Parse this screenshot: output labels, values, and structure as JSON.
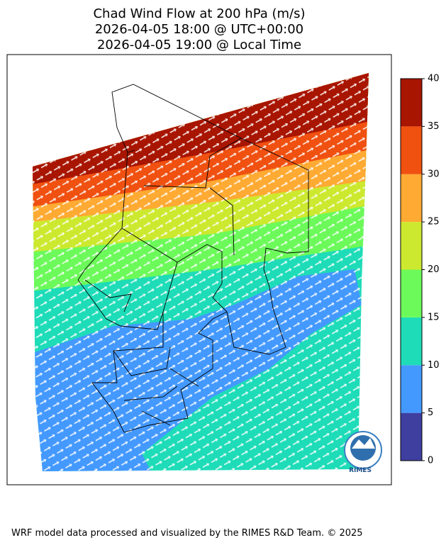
{
  "title": [
    "Chad Wind Flow at 200 hPa (m/s)",
    "2026-04-05 18:00 @ UTC+00:00",
    "2026-04-05 19:00 @ Local Time"
  ],
  "colorbar": {
    "levels": [
      0,
      5,
      10,
      15,
      20,
      25,
      30,
      35,
      40
    ],
    "colors": [
      "#3f3fa0",
      "#4499ff",
      "#1edcb8",
      "#6cfa5a",
      "#cde92f",
      "#ffaa33",
      "#f05010",
      "#a81500"
    ]
  },
  "logo": "RIMES",
  "footer": "WRF model data processed and visualized by the RIMES R&D Team. © 2025"
}
